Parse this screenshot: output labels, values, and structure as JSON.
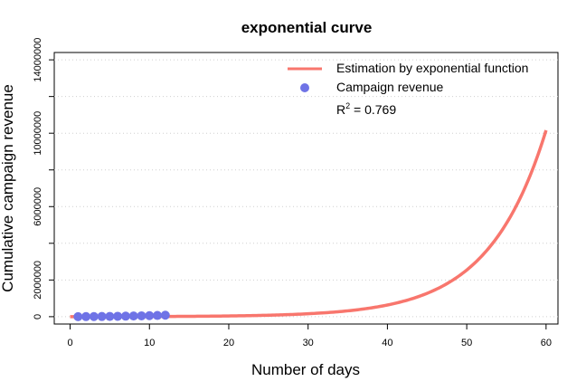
{
  "chart_data": {
    "type": "scatter",
    "title": "exponential curve",
    "xlabel": "Number of days",
    "ylabel": "Cumulative campaign revenue",
    "xlim": [
      -2,
      61.5
    ],
    "ylim": [
      -400000,
      14400000
    ],
    "x_ticks": [
      0,
      10,
      20,
      30,
      40,
      50,
      60
    ],
    "y_ticks": [
      0,
      2000000,
      6000000,
      10000000,
      14000000
    ],
    "y_minor_ticks": [
      4000000,
      8000000,
      12000000
    ],
    "grid": "horizontal-dotted",
    "legend_position": "top-right",
    "series": [
      {
        "name": "Estimation by exponential function",
        "kind": "line",
        "color": "#f8766d",
        "model": {
          "form": "a*exp(b*x)",
          "a": 2500,
          "b": 0.1385,
          "x_range": [
            0,
            60
          ]
        }
      },
      {
        "name": "Campaign revenue",
        "kind": "points",
        "color": "#6f73e6",
        "x": [
          1,
          2,
          3,
          4,
          5,
          6,
          7,
          8,
          9,
          10,
          11,
          12
        ],
        "y": [
          2000,
          4000,
          7000,
          11000,
          16000,
          22000,
          29000,
          37000,
          46000,
          56000,
          67000,
          80000
        ]
      }
    ],
    "annotation": {
      "base": "R",
      "superscript": "2",
      "text": " = 0.769"
    }
  }
}
